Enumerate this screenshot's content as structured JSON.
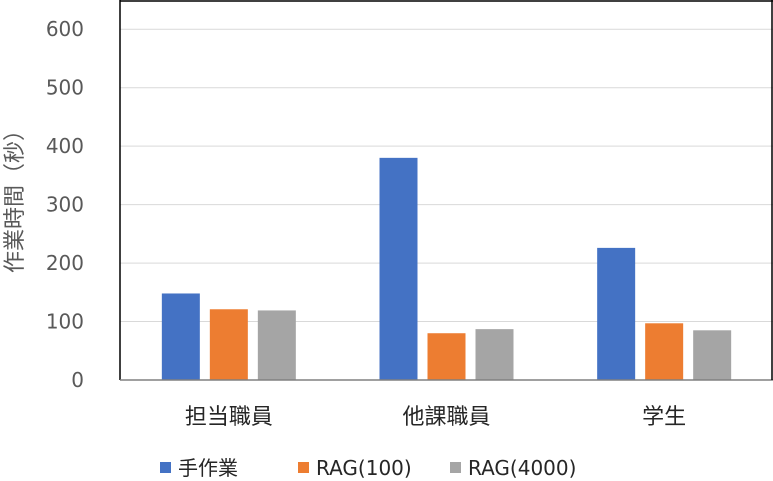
{
  "chart_data": {
    "type": "bar",
    "title": "",
    "xlabel": "",
    "ylabel": "作業時間（秒）",
    "ylim": [
      0,
      650
    ],
    "yticks": [
      0,
      100,
      200,
      300,
      400,
      500,
      600
    ],
    "categories": [
      "担当職員",
      "他課職員",
      "学生"
    ],
    "series": [
      {
        "name": "手作業",
        "color": "#4472C4",
        "values": [
          148,
          380,
          226
        ]
      },
      {
        "name": "RAG(100)",
        "color": "#ED7D31",
        "values": [
          121,
          80,
          97
        ]
      },
      {
        "name": "RAG(4000)",
        "color": "#A5A5A5",
        "values": [
          119,
          87,
          85
        ]
      }
    ],
    "grid": true,
    "legend_position": "bottom"
  }
}
